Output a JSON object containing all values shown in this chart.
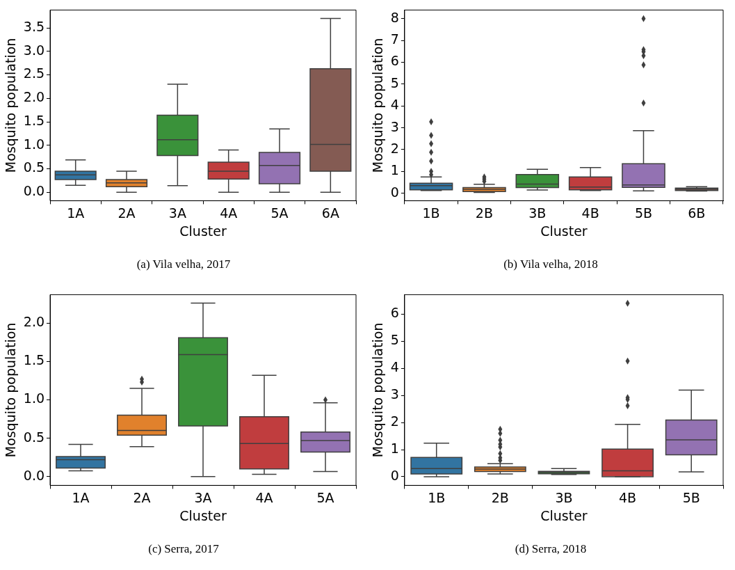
{
  "chart_data": [
    {
      "type": "box",
      "categories": [
        "1A",
        "2A",
        "3A",
        "4A",
        "5A",
        "6A"
      ],
      "xlabel": "Cluster",
      "ylabel": "Mosquito population",
      "ylim": [
        -0.18,
        3.88
      ],
      "yticks": [
        {
          "value": 0,
          "label": "0.0"
        },
        {
          "value": 0.5,
          "label": "0.5"
        },
        {
          "value": 1,
          "label": "1.0"
        },
        {
          "value": 1.5,
          "label": "1.5"
        },
        {
          "value": 2,
          "label": "2.0"
        },
        {
          "value": 2.5,
          "label": "2.5"
        },
        {
          "value": 3,
          "label": "3.0"
        },
        {
          "value": 3.5,
          "label": "3.5"
        }
      ],
      "marker": "diamond",
      "colors": [
        "#3274a1",
        "#e1812c",
        "#3a923a",
        "#c03d3e",
        "#9372b2",
        "#845b53"
      ],
      "boxes": [
        {
          "low": 0.15,
          "q1": 0.27,
          "median": 0.37,
          "q3": 0.45,
          "high": 0.69
        },
        {
          "low": 0,
          "q1": 0.12,
          "median": 0.2,
          "q3": 0.27,
          "high": 0.45
        },
        {
          "low": 0.14,
          "q1": 0.78,
          "median": 1.12,
          "q3": 1.64,
          "high": 2.3
        },
        {
          "low": 0,
          "q1": 0.28,
          "median": 0.45,
          "q3": 0.64,
          "high": 0.9
        },
        {
          "low": 0,
          "q1": 0.18,
          "median": 0.57,
          "q3": 0.85,
          "high": 1.35
        },
        {
          "low": 0,
          "q1": 0.45,
          "median": 1.02,
          "q3": 2.63,
          "high": 3.7
        }
      ],
      "annotations": [
        "(a)  Vila velha, 2017"
      ]
    },
    {
      "type": "box",
      "categories": [
        "1B",
        "2B",
        "3B",
        "4B",
        "5B",
        "6B"
      ],
      "xlabel": "Cluster",
      "ylabel": "Mosquito population",
      "ylim": [
        -0.34,
        8.39
      ],
      "yticks": [
        0,
        1,
        2,
        3,
        4,
        5,
        6,
        7,
        8
      ],
      "marker": "diamond",
      "colors": [
        "#3274a1",
        "#e1812c",
        "#3a923a",
        "#c03d3e",
        "#9372b2",
        "#845b53"
      ],
      "boxes": [
        {
          "low": 0.13,
          "q1": 0.16,
          "median": 0.35,
          "q3": 0.46,
          "high": 0.75,
          "outliers": [
            0.85,
            1.0,
            1.47,
            1.88,
            2.27,
            2.65,
            3.27
          ]
        },
        {
          "low": 0.04,
          "q1": 0.08,
          "median": 0.18,
          "q3": 0.26,
          "high": 0.41,
          "outliers": [
            0.55,
            0.65,
            0.75
          ]
        },
        {
          "low": 0.15,
          "q1": 0.26,
          "median": 0.42,
          "q3": 0.86,
          "high": 1.1
        },
        {
          "low": 0.13,
          "q1": 0.16,
          "median": 0.29,
          "q3": 0.75,
          "high": 1.18
        },
        {
          "low": 0.11,
          "q1": 0.27,
          "median": 0.38,
          "q3": 1.35,
          "high": 2.87,
          "outliers": [
            4.13,
            5.88,
            6.3,
            6.48,
            6.58,
            8.0
          ]
        },
        {
          "low": 0.1,
          "q1": 0.13,
          "median": 0.19,
          "q3": 0.24,
          "high": 0.3
        }
      ],
      "annotations": [
        "(b)  Vila velha, 2018"
      ]
    },
    {
      "type": "box",
      "categories": [
        "1A",
        "2A",
        "3A",
        "4A",
        "5A"
      ],
      "xlabel": "Cluster",
      "ylabel": "Mosquito population",
      "ylim": [
        -0.115,
        2.37
      ],
      "yticks": [
        {
          "value": 0,
          "label": "0.0"
        },
        {
          "value": 0.5,
          "label": "0.5"
        },
        {
          "value": 1,
          "label": "1.0"
        },
        {
          "value": 1.5,
          "label": "1.5"
        },
        {
          "value": 2,
          "label": "2.0"
        }
      ],
      "marker": "diamond",
      "colors": [
        "#3274a1",
        "#e1812c",
        "#3a923a",
        "#c03d3e",
        "#9372b2"
      ],
      "boxes": [
        {
          "low": 0.075,
          "q1": 0.11,
          "median": 0.22,
          "q3": 0.26,
          "high": 0.42
        },
        {
          "low": 0.39,
          "q1": 0.54,
          "median": 0.6,
          "q3": 0.8,
          "high": 1.15,
          "outliers": [
            1.23,
            1.27
          ]
        },
        {
          "low": 0,
          "q1": 0.66,
          "median": 1.59,
          "q3": 1.81,
          "high": 2.26
        },
        {
          "low": 0.03,
          "q1": 0.1,
          "median": 0.43,
          "q3": 0.78,
          "high": 1.32
        },
        {
          "low": 0.065,
          "q1": 0.32,
          "median": 0.47,
          "q3": 0.58,
          "high": 0.96,
          "outliers": [
            1.0
          ]
        }
      ],
      "annotations": [
        "(c)  Serra, 2017"
      ]
    },
    {
      "type": "box",
      "categories": [
        "1B",
        "2B",
        "3B",
        "4B",
        "5B"
      ],
      "xlabel": "Cluster",
      "ylabel": "Mosquito population",
      "ylim": [
        -0.32,
        6.72
      ],
      "yticks": [
        0,
        1,
        2,
        3,
        4,
        5,
        6
      ],
      "marker": "diamond",
      "colors": [
        "#3274a1",
        "#e1812c",
        "#3a923a",
        "#c03d3e",
        "#9372b2"
      ],
      "boxes": [
        {
          "low": 0,
          "q1": 0.1,
          "median": 0.3,
          "q3": 0.71,
          "high": 1.24
        },
        {
          "low": 0.1,
          "q1": 0.19,
          "median": 0.28,
          "q3": 0.36,
          "high": 0.48,
          "outliers": [
            0.6,
            0.7,
            0.85,
            1.1,
            1.2,
            1.35,
            1.6,
            1.75
          ]
        },
        {
          "low": 0.08,
          "q1": 0.11,
          "median": 0.16,
          "q3": 0.2,
          "high": 0.3
        },
        {
          "low": 0,
          "q1": 0,
          "median": 0.22,
          "q3": 1.02,
          "high": 1.93,
          "outliers": [
            2.62,
            2.85,
            2.92,
            4.27,
            6.4
          ]
        },
        {
          "low": 0.18,
          "q1": 0.81,
          "median": 1.36,
          "q3": 2.09,
          "high": 3.2
        }
      ],
      "annotations": [
        "(d)  Serra, 2018"
      ]
    }
  ]
}
